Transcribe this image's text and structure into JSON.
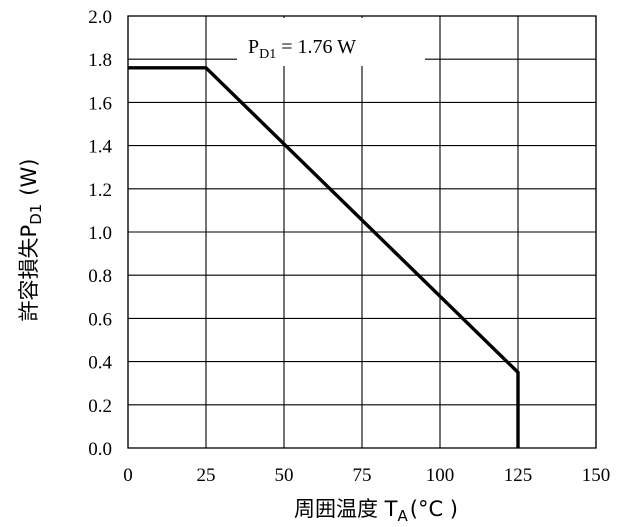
{
  "chart_data": {
    "type": "line",
    "x_axis": {
      "label_main": "周囲温度 T",
      "label_sub": "A",
      "label_unit": "(°C )",
      "range": [
        0,
        150
      ],
      "ticks": [
        0,
        25,
        50,
        75,
        100,
        125,
        150
      ],
      "tick_labels": [
        "0",
        "25",
        "50",
        "75",
        "100",
        "125",
        "150"
      ]
    },
    "y_axis": {
      "label_main": "許容損失P",
      "label_sub": "D1",
      "label_unit": "(W)",
      "range": [
        0,
        2.0
      ],
      "ticks": [
        0,
        0.2,
        0.4,
        0.6,
        0.8,
        1.0,
        1.2,
        1.4,
        1.6,
        1.8,
        2.0
      ],
      "tick_labels": [
        "0.0",
        "0.2",
        "0.4",
        "0.6",
        "0.8",
        "1.0",
        "1.2",
        "1.4",
        "1.6",
        "1.8",
        "2.0"
      ]
    },
    "grid": true,
    "series": [
      {
        "points": [
          [
            0,
            1.76
          ],
          [
            25,
            1.76
          ],
          [
            125,
            0.35
          ],
          [
            125,
            0
          ]
        ],
        "color": "#000000"
      }
    ],
    "annotation": {
      "main": "P",
      "sub": "D1",
      "rest": " = 1.76 W",
      "x": 50,
      "y": 1.86
    }
  }
}
